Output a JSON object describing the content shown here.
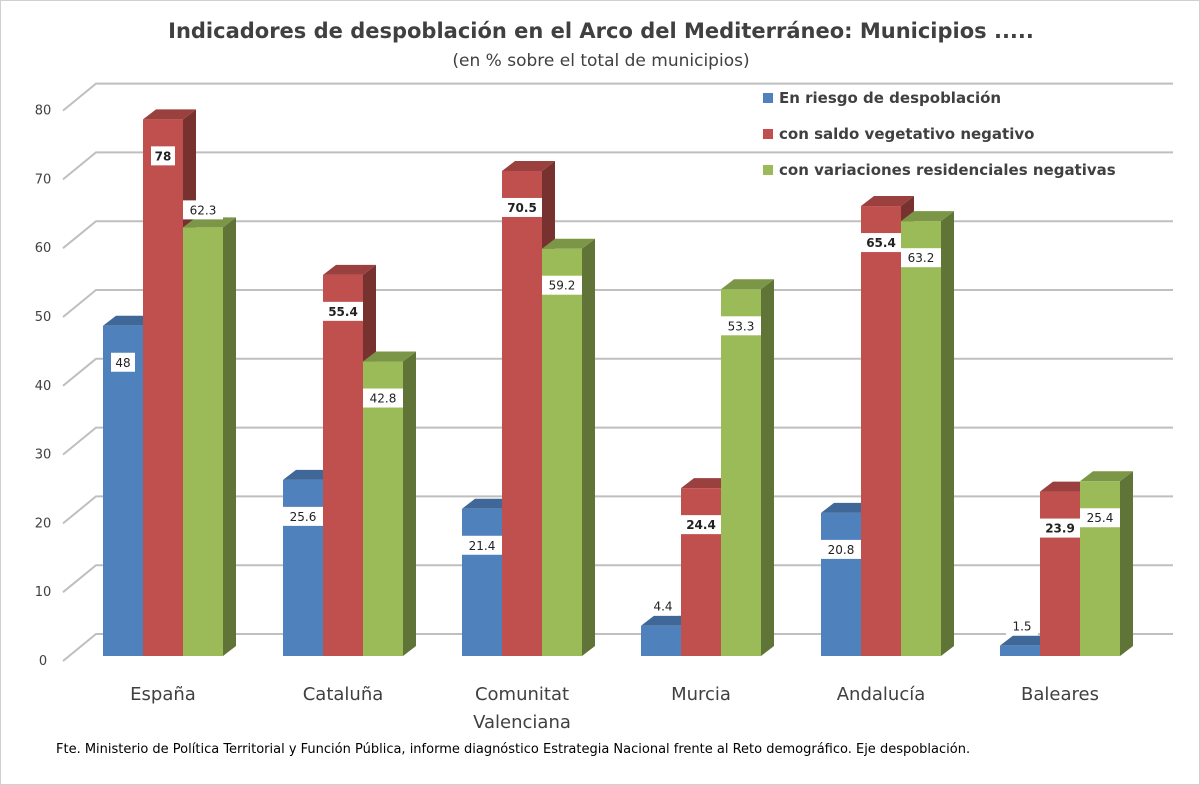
{
  "chart_data": {
    "type": "bar",
    "title": "Indicadores de despoblación en el Arco del Mediterráneo: Municipios .....",
    "subtitle": "(en % sobre el total de municipios)",
    "categories": [
      "España",
      "Cataluña",
      "Comunitat Valenciana",
      "Murcia",
      "Andalucía",
      "Baleares"
    ],
    "series": [
      {
        "name": "En riesgo de despoblación",
        "color": "#4f81bd",
        "values": [
          48,
          25.6,
          21.4,
          4.4,
          20.8,
          1.5
        ]
      },
      {
        "name": "con saldo vegetativo negativo",
        "color": "#c0504d",
        "values": [
          78,
          55.4,
          70.5,
          24.4,
          65.4,
          23.9
        ]
      },
      {
        "name": "con variaciones residenciales negativas",
        "color": "#9bbb59",
        "values": [
          62.3,
          42.8,
          59.2,
          53.3,
          63.2,
          25.4
        ]
      }
    ],
    "ylim": [
      0,
      80
    ],
    "yticks": [
      0,
      10,
      20,
      30,
      40,
      50,
      60,
      70,
      80
    ],
    "grid": true,
    "legend": "top-right",
    "style": "3d-clustered-column",
    "source": "Fte. Ministerio de Política Territorial y Función Pública, informe diagnóstico Estrategia Nacional frente al Reto demográfico. Eje despoblación."
  }
}
